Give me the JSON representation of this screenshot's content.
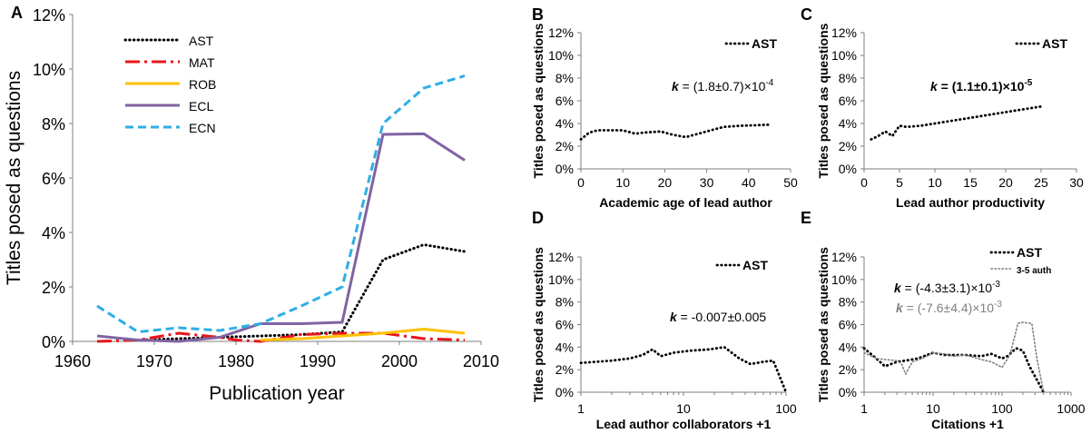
{
  "chart_data": [
    {
      "panel": "A",
      "type": "line",
      "xlabel": "Publication year",
      "ylabel": "Titles posed as questions",
      "xlim": [
        1960,
        2010
      ],
      "ylim": [
        0,
        12
      ],
      "xticks": [
        "1960",
        "1970",
        "1980",
        "1990",
        "2000",
        "2010"
      ],
      "yticks": [
        "0%",
        "2%",
        "4%",
        "6%",
        "8%",
        "10%",
        "12%"
      ],
      "legend_position": "top-left",
      "series": [
        {
          "name": "AST",
          "color": "#000000",
          "style": "dotted",
          "x": [
            1968,
            1973,
            1978,
            1983,
            1988,
            1993,
            1998,
            2003,
            2008
          ],
          "y": [
            0.05,
            0.1,
            0.15,
            0.2,
            0.25,
            0.35,
            3.0,
            3.55,
            3.3
          ]
        },
        {
          "name": "MAT",
          "color": "#e8141b",
          "style": "longdash",
          "x": [
            1963,
            1968,
            1973,
            1978,
            1980,
            1983,
            1988,
            1993,
            1998,
            2003,
            2008
          ],
          "y": [
            0.0,
            0.05,
            0.3,
            0.15,
            0.05,
            0.0,
            0.25,
            0.3,
            0.3,
            0.1,
            0.05
          ]
        },
        {
          "name": "ROB",
          "color": "#ffc000",
          "style": "solid",
          "x": [
            1983,
            1988,
            1993,
            1998,
            2003,
            2008
          ],
          "y": [
            0.05,
            0.1,
            0.2,
            0.3,
            0.45,
            0.3
          ]
        },
        {
          "name": "ECL",
          "color": "#8064a2",
          "style": "solid",
          "x": [
            1963,
            1968,
            1973,
            1978,
            1983,
            1988,
            1993,
            1998,
            2003,
            2008
          ],
          "y": [
            0.2,
            0.05,
            0.0,
            0.15,
            0.65,
            0.65,
            0.7,
            7.6,
            7.62,
            6.65
          ]
        },
        {
          "name": "ECN",
          "color": "#2eaee5",
          "style": "dashed",
          "x": [
            1963,
            1968,
            1973,
            1978,
            1983,
            1988,
            1993,
            1998,
            2003,
            2008
          ],
          "y": [
            1.3,
            0.35,
            0.5,
            0.4,
            0.65,
            1.3,
            2.0,
            8.0,
            9.3,
            9.75
          ]
        }
      ]
    },
    {
      "panel": "B",
      "type": "line",
      "xlabel": "Academic age of lead author",
      "ylabel": "Titles posed as questions",
      "xlim": [
        0,
        50
      ],
      "ylim": [
        0,
        12
      ],
      "xticks": [
        "0",
        "10",
        "20",
        "30",
        "40",
        "50"
      ],
      "yticks": [
        "0%",
        "2%",
        "4%",
        "6%",
        "8%",
        "10%",
        "12%"
      ],
      "annotation": {
        "prefix": "k",
        "text": " = (1.8±0.7)×10",
        "exp": "-4"
      },
      "series": [
        {
          "name": "AST",
          "color": "#000000",
          "style": "dotted",
          "x": [
            0,
            2,
            4,
            7,
            10,
            13,
            15,
            19,
            22,
            25,
            28,
            31,
            34,
            38,
            42,
            45
          ],
          "y": [
            2.6,
            3.2,
            3.4,
            3.4,
            3.4,
            3.1,
            3.2,
            3.3,
            3.0,
            2.8,
            3.1,
            3.4,
            3.7,
            3.8,
            3.85,
            3.9
          ]
        }
      ]
    },
    {
      "panel": "C",
      "type": "line",
      "xlabel": "Lead author productivity",
      "ylabel": "Titles posed as questions",
      "xlim": [
        0,
        30
      ],
      "ylim": [
        0,
        12
      ],
      "xticks": [
        "0",
        "5",
        "10",
        "15",
        "20",
        "25",
        "30"
      ],
      "yticks": [
        "0%",
        "2%",
        "4%",
        "6%",
        "8%",
        "10%",
        "12%"
      ],
      "annotation": {
        "prefix": "k",
        "text": " = (1.1±0.1)×10",
        "exp": "-5"
      },
      "series": [
        {
          "name": "AST",
          "color": "#000000",
          "style": "dotted",
          "x": [
            1,
            2,
            3,
            4,
            5,
            6,
            8,
            10,
            12,
            15,
            18,
            20,
            22,
            25
          ],
          "y": [
            2.6,
            2.9,
            3.3,
            2.9,
            3.8,
            3.7,
            3.8,
            4.0,
            4.2,
            4.5,
            4.8,
            5.0,
            5.2,
            5.5
          ]
        }
      ]
    },
    {
      "panel": "D",
      "type": "line",
      "xscale": "log",
      "xlabel": "Lead author collaborators +1",
      "ylabel": "Titles posed as questions",
      "xlim": [
        1,
        100
      ],
      "ylim": [
        0,
        12
      ],
      "xticks": [
        "1",
        "10",
        "100"
      ],
      "yticks": [
        "0%",
        "2%",
        "4%",
        "6%",
        "8%",
        "10%",
        "12%"
      ],
      "annotation": {
        "prefix": "k",
        "text": " = -0.007±0.005",
        "exp": ""
      },
      "series": [
        {
          "name": "AST",
          "color": "#000000",
          "style": "dotted",
          "x": [
            1,
            2,
            3,
            4,
            5,
            6,
            8,
            12,
            18,
            25,
            35,
            45,
            60,
            75,
            100
          ],
          "y": [
            2.6,
            2.8,
            3.0,
            3.3,
            3.8,
            3.2,
            3.5,
            3.7,
            3.8,
            4.0,
            3.0,
            2.5,
            2.7,
            2.8,
            0.0
          ]
        }
      ]
    },
    {
      "panel": "E",
      "type": "line",
      "xscale": "log",
      "xlabel": "Citations +1",
      "ylabel": "Titles posed as questions",
      "xlim": [
        1,
        1000
      ],
      "ylim": [
        0,
        12
      ],
      "xticks": [
        "1",
        "10",
        "100",
        "1000"
      ],
      "yticks": [
        "0%",
        "2%",
        "4%",
        "6%",
        "8%",
        "10%",
        "12%"
      ],
      "annotations": [
        {
          "prefix": "k",
          "text": " = (-4.3±3.1)×10",
          "exp": "-3",
          "color": "#000000"
        },
        {
          "prefix": "k",
          "text": " = (-7.6±4.4)×10",
          "exp": "-3",
          "color": "#808080"
        }
      ],
      "series": [
        {
          "name": "AST",
          "color": "#000000",
          "style": "dotted",
          "x": [
            1,
            1.5,
            2,
            3,
            4,
            6,
            10,
            15,
            20,
            30,
            50,
            70,
            100,
            120,
            160,
            200,
            250,
            400
          ],
          "y": [
            3.9,
            3.0,
            2.3,
            2.7,
            2.8,
            3.0,
            3.5,
            3.3,
            3.3,
            3.3,
            3.2,
            3.4,
            3.0,
            3.2,
            3.9,
            3.7,
            2.3,
            0.0
          ]
        },
        {
          "name": "3-5 auth",
          "color": "#808080",
          "style": "dotted",
          "x": [
            1,
            1.5,
            2,
            3,
            3.5,
            4,
            5,
            7,
            10,
            15,
            20,
            30,
            50,
            70,
            100,
            130,
            170,
            200,
            270,
            320,
            400
          ],
          "y": [
            3.5,
            3.0,
            2.9,
            2.8,
            2.5,
            1.6,
            2.7,
            3.0,
            3.5,
            3.4,
            3.2,
            3.3,
            2.9,
            2.7,
            2.2,
            3.3,
            6.1,
            6.2,
            6.1,
            3.0,
            0.0
          ]
        }
      ]
    }
  ]
}
